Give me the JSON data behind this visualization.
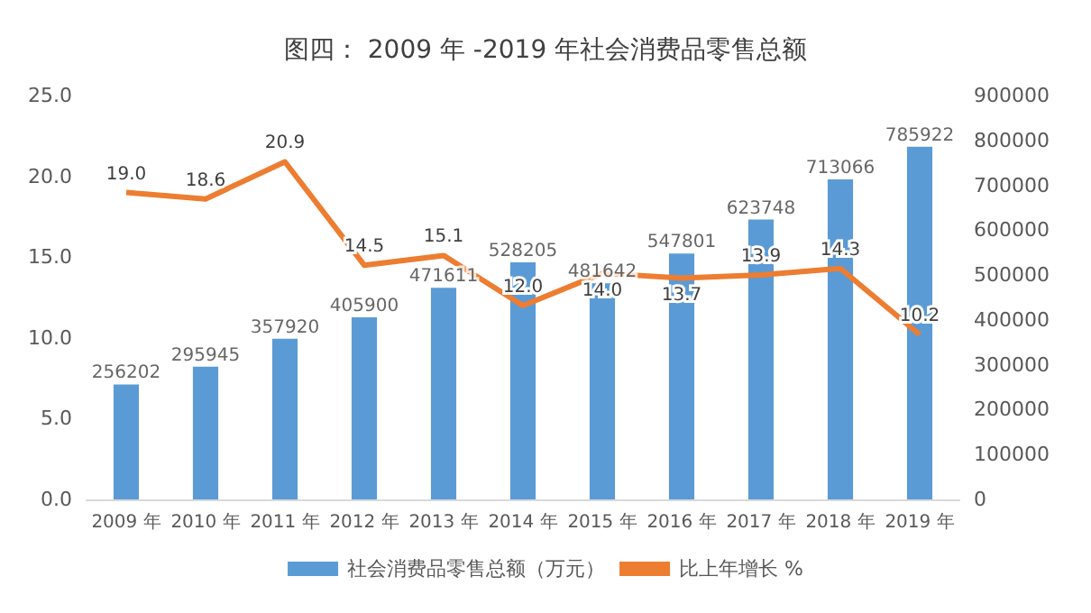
{
  "chart_data": {
    "type": "bar",
    "title": "图四： 2009 年 -2019 年社会消费品零售总额",
    "categories": [
      "2009 年",
      "2010 年",
      "2011 年",
      "2012 年",
      "2013 年",
      "2014 年",
      "2015 年",
      "2016 年",
      "2017 年",
      "2018 年",
      "2019 年"
    ],
    "series": [
      {
        "name": "社会消费品零售总额（万元）",
        "axis": "y2",
        "color": "#5b9bd5",
        "values": [
          256202,
          295945,
          357920,
          405900,
          471611,
          528205,
          481642,
          547801,
          623748,
          713066,
          785922
        ],
        "value_labels": [
          "256202",
          "295945",
          "357920",
          "405900",
          "471611",
          "528205",
          "481642",
          "547801",
          "623748",
          "713066",
          "785922"
        ]
      },
      {
        "name": "比上年增长 %",
        "type": "line",
        "color": "#ed7d31",
        "values": [
          19.0,
          18.6,
          20.9,
          14.5,
          15.1,
          12.0,
          14.0,
          13.7,
          13.9,
          14.3,
          10.2
        ],
        "value_labels": [
          "19.0",
          "18.6",
          "20.9",
          "14.5",
          "15.1",
          "12.0",
          "14.0",
          "13.7",
          "13.9",
          "14.3",
          "10.2"
        ]
      }
    ],
    "ylim": [
      0,
      25
    ],
    "yticks": [
      {
        "value": 0,
        "label": "0.0"
      },
      {
        "value": 5,
        "label": "5.0"
      },
      {
        "value": 10,
        "label": "10.0"
      },
      {
        "value": 15,
        "label": "15.0"
      },
      {
        "value": 20,
        "label": "20.0"
      },
      {
        "value": 25,
        "label": "25.0"
      }
    ],
    "y2lim": [
      0,
      900000
    ],
    "y2ticks": [
      0,
      100000,
      200000,
      300000,
      400000,
      500000,
      600000,
      700000,
      800000,
      900000
    ],
    "legend": "bottom",
    "marker": "none",
    "grid": false
  }
}
